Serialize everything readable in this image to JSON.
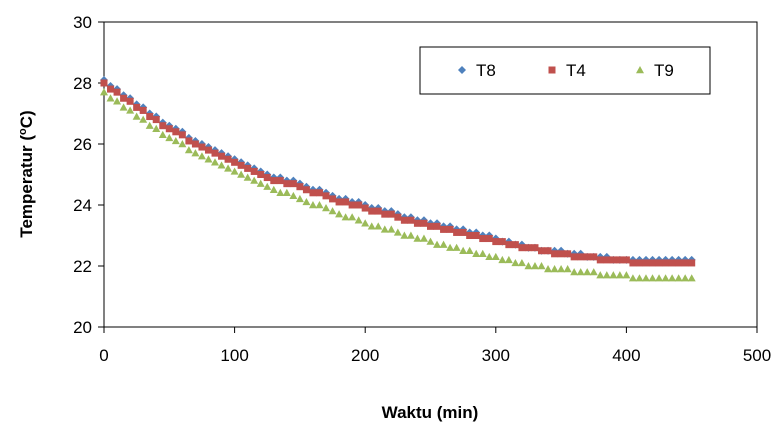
{
  "chart_data": {
    "type": "scatter",
    "title": "",
    "xlabel": "Waktu (min)",
    "ylabel": "Temperatur (",
    "ylabel_sup": "o",
    "ylabel_tail": "C)",
    "xlim": [
      0,
      500
    ],
    "ylim": [
      20,
      30
    ],
    "x_ticks": [
      "0",
      "100",
      "200",
      "300",
      "400",
      "500"
    ],
    "y_ticks": [
      "20",
      "22",
      "24",
      "26",
      "28",
      "30"
    ],
    "grid": false,
    "legend_position": "top-right",
    "series": [
      {
        "name": "T8",
        "color": "#4f81bd",
        "marker": "diamond",
        "x": [
          0,
          25,
          50,
          75,
          100,
          125,
          150,
          175,
          200,
          225,
          250,
          275,
          300,
          325,
          350,
          375,
          400,
          425,
          450
        ],
        "y": [
          28.05,
          27.3,
          26.6,
          26.0,
          25.5,
          25.0,
          24.7,
          24.3,
          24.0,
          23.7,
          23.4,
          23.2,
          22.9,
          22.6,
          22.45,
          22.3,
          22.2,
          22.2,
          22.2
        ]
      },
      {
        "name": "T4",
        "color": "#c0504d",
        "marker": "square",
        "x": [
          0,
          25,
          50,
          75,
          100,
          125,
          150,
          175,
          200,
          225,
          250,
          275,
          300,
          325,
          350,
          375,
          400,
          425,
          450
        ],
        "y": [
          28.0,
          27.2,
          26.5,
          25.9,
          25.4,
          24.9,
          24.6,
          24.2,
          23.9,
          23.6,
          23.3,
          23.1,
          22.8,
          22.6,
          22.4,
          22.25,
          22.15,
          22.1,
          22.1
        ]
      },
      {
        "name": "T9",
        "color": "#9bbb59",
        "marker": "triangle",
        "x": [
          0,
          25,
          50,
          75,
          100,
          125,
          150,
          175,
          200,
          225,
          250,
          275,
          300,
          325,
          350,
          375,
          400,
          425,
          450
        ],
        "y": [
          27.7,
          26.9,
          26.2,
          25.6,
          25.1,
          24.6,
          24.2,
          23.8,
          23.4,
          23.1,
          22.8,
          22.5,
          22.3,
          22.0,
          21.9,
          21.75,
          21.65,
          21.6,
          21.6
        ]
      }
    ]
  }
}
